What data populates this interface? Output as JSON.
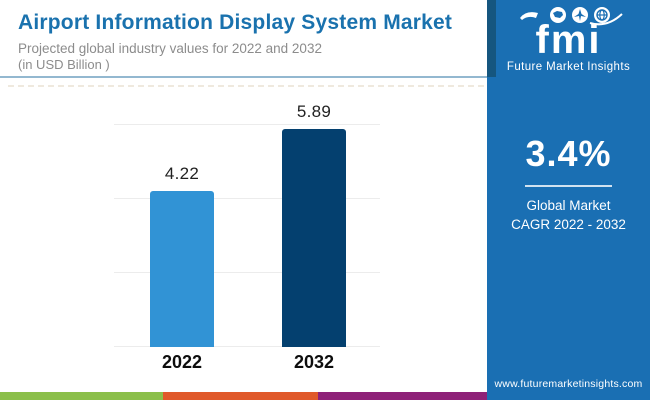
{
  "header": {
    "title": "Airport Information Display System Market",
    "subtitle": "Projected global industry values for 2022 and 2032",
    "subtitle2": "(in USD Billion )"
  },
  "chart_data": {
    "type": "bar",
    "categories": [
      "2022",
      "2032"
    ],
    "values": [
      4.22,
      5.89
    ],
    "value_labels": [
      "4.22",
      "5.89"
    ],
    "title": "Airport Information Display System Market",
    "xlabel": "",
    "ylabel": "",
    "unit": "USD Billion",
    "ylim": [
      0,
      6
    ],
    "gridlines": [
      0,
      2,
      4,
      6
    ],
    "grid": "horizontal-only",
    "legend": "none",
    "bar_colors": [
      "#3193d5",
      "#04406f"
    ]
  },
  "sidebar": {
    "logo": {
      "brand": "fmi",
      "tagline": "Future Market Insights",
      "icons": [
        "map-icon",
        "airplane-icon",
        "globe-icon"
      ]
    },
    "cagr": {
      "value": "3.4%",
      "caption_line1": "Global Market",
      "caption_line2": "CAGR 2022 - 2032"
    },
    "website": "www.futuremarketinsights.com"
  },
  "colors": {
    "sidebar_blue": "#1a6fb3",
    "title_blue": "#1a72ae",
    "subtitle_gray": "#8c8c8c",
    "bar_2022": "#3193d5",
    "bar_2032": "#04406f",
    "strip_green": "#8bbf4a",
    "strip_orange": "#e0592a",
    "strip_purple": "#8e2178"
  }
}
